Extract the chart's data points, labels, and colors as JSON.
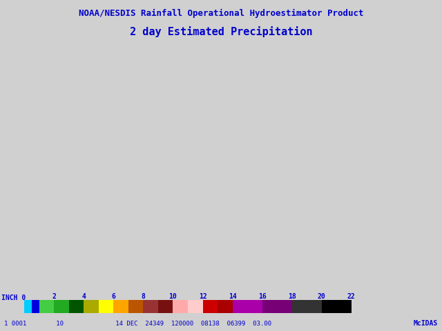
{
  "title_line1": "NOAA/NESDIS Rainfall Operational Hydroestimator Product",
  "title_line2": "2 day Estimated Precipitation",
  "title_color": "#0000CC",
  "background_color": "#D0D0D0",
  "map_background": "#F0F0F0",
  "colorbar_segments": [
    [
      0,
      0.5,
      "#00CCFF"
    ],
    [
      0.5,
      1.0,
      "#0000DD"
    ],
    [
      1.0,
      2.0,
      "#44CC44"
    ],
    [
      2.0,
      3.0,
      "#22AA22"
    ],
    [
      3.0,
      4.0,
      "#005500"
    ],
    [
      4.0,
      5.0,
      "#AAAA00"
    ],
    [
      5.0,
      6.0,
      "#FFFF00"
    ],
    [
      6.0,
      7.0,
      "#FFA500"
    ],
    [
      7.0,
      8.0,
      "#BB5500"
    ],
    [
      8.0,
      9.0,
      "#993333"
    ],
    [
      9.0,
      10.0,
      "#771111"
    ],
    [
      10.0,
      11.0,
      "#FFAAAA"
    ],
    [
      11.0,
      12.0,
      "#FFCCCC"
    ],
    [
      12.0,
      13.0,
      "#CC0000"
    ],
    [
      13.0,
      14.0,
      "#AA0000"
    ],
    [
      14.0,
      16.0,
      "#AA00AA"
    ],
    [
      16.0,
      18.0,
      "#770077"
    ],
    [
      18.0,
      20.0,
      "#333333"
    ],
    [
      20.0,
      22.0,
      "#000000"
    ]
  ],
  "colorbar_ticks": [
    0,
    2,
    4,
    6,
    8,
    10,
    12,
    14,
    16,
    18,
    20,
    22
  ],
  "bottom_text": "1 0001        10              14 DEC  24349  120000  08138  06399  03.00",
  "bottom_text_right": "McIDAS",
  "text_color": "#0000CC",
  "figsize": [
    6.4,
    4.8
  ],
  "dpi": 100,
  "map_extent": [
    -135,
    -55,
    18,
    58
  ],
  "state_color": "#666666",
  "coast_color": "#555555"
}
